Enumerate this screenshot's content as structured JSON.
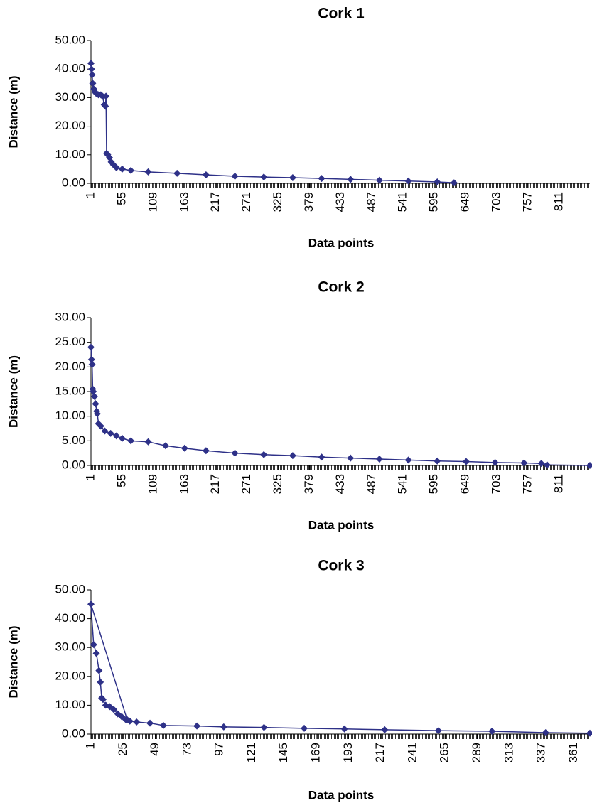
{
  "chart_data": [
    {
      "type": "line",
      "title": "Cork 1",
      "x_label": "Data points",
      "y_label": "Distance (m)",
      "color": "#2e3188",
      "xlim": [
        1,
        864
      ],
      "xticks": [
        1,
        55,
        109,
        163,
        217,
        271,
        325,
        379,
        433,
        487,
        541,
        595,
        649,
        703,
        757,
        811
      ],
      "ylim": [
        0,
        50
      ],
      "yticks": [
        {
          "value": 0,
          "label": "0.00"
        },
        {
          "value": 10,
          "label": "10.00"
        },
        {
          "value": 20,
          "label": "20.00"
        },
        {
          "value": 30,
          "label": "30.00"
        },
        {
          "value": 40,
          "label": "40.00"
        },
        {
          "value": 50,
          "label": "50.00"
        }
      ],
      "x": [
        1,
        2,
        3,
        4,
        6,
        8,
        10,
        14,
        18,
        21,
        24,
        26,
        27,
        28,
        30,
        33,
        36,
        40,
        45,
        55,
        70,
        100,
        150,
        200,
        250,
        300,
        350,
        400,
        450,
        500,
        550,
        600,
        629
      ],
      "values": [
        42,
        40,
        38,
        35,
        33,
        32,
        31.5,
        31,
        31,
        30.5,
        27.5,
        27,
        30.5,
        10.5,
        10,
        9,
        7.5,
        6.5,
        5.5,
        5,
        4.5,
        4,
        3.5,
        3,
        2.5,
        2.2,
        2,
        1.7,
        1.4,
        1.1,
        0.8,
        0.5,
        0.2
      ]
    },
    {
      "type": "line",
      "title": "Cork 2",
      "x_label": "Data points",
      "y_label": "Distance (m)",
      "color": "#2e3188",
      "xlim": [
        1,
        864
      ],
      "xticks": [
        1,
        55,
        109,
        163,
        217,
        271,
        325,
        379,
        433,
        487,
        541,
        595,
        649,
        703,
        757,
        811
      ],
      "ylim": [
        0,
        30
      ],
      "yticks": [
        {
          "value": 0,
          "label": "0.00"
        },
        {
          "value": 5,
          "label": "5.00"
        },
        {
          "value": 10,
          "label": "10.00"
        },
        {
          "value": 15,
          "label": "15.00"
        },
        {
          "value": 20,
          "label": "20.00"
        },
        {
          "value": 25,
          "label": "25.00"
        },
        {
          "value": 30,
          "label": "30.00"
        }
      ],
      "x": [
        1,
        2,
        3,
        4,
        5,
        7,
        9,
        11,
        12,
        14,
        18,
        25,
        35,
        45,
        55,
        70,
        100,
        130,
        163,
        200,
        250,
        300,
        350,
        400,
        450,
        500,
        550,
        600,
        650,
        700,
        750,
        780,
        790,
        864
      ],
      "values": [
        24,
        21.5,
        20.5,
        15.5,
        15,
        14,
        12.5,
        11,
        10.5,
        8.5,
        8,
        7,
        6.5,
        6,
        5.5,
        5,
        4.8,
        4,
        3.5,
        3,
        2.5,
        2.2,
        2,
        1.7,
        1.5,
        1.3,
        1.1,
        0.9,
        0.8,
        0.6,
        0.5,
        0.4,
        0.1,
        0
      ]
    },
    {
      "type": "line",
      "title": "Cork 3",
      "x_label": "Data points",
      "y_label": "Distance (m)",
      "color": "#2e3188",
      "xlim": [
        1,
        373
      ],
      "xticks": [
        1,
        25,
        49,
        73,
        97,
        121,
        145,
        169,
        193,
        217,
        241,
        265,
        289,
        313,
        337,
        361
      ],
      "ylim": [
        0,
        50
      ],
      "yticks": [
        {
          "value": 0,
          "label": "0.00"
        },
        {
          "value": 10,
          "label": "10.00"
        },
        {
          "value": 20,
          "label": "20.00"
        },
        {
          "value": 30,
          "label": "30.00"
        },
        {
          "value": 40,
          "label": "40.00"
        },
        {
          "value": 50,
          "label": "50.00"
        }
      ],
      "x": [
        28,
        1,
        3,
        5,
        7,
        8,
        9,
        10,
        12,
        15,
        18,
        21,
        24,
        27,
        30,
        35,
        45,
        55,
        80,
        100,
        130,
        160,
        190,
        220,
        260,
        300,
        340,
        373
      ],
      "values": [
        5,
        45,
        31,
        28,
        22,
        18,
        12.5,
        12,
        10,
        9.5,
        8.5,
        7,
        6,
        5,
        4.5,
        4.2,
        3.8,
        3,
        2.8,
        2.5,
        2.3,
        2,
        1.8,
        1.5,
        1.2,
        1,
        0.5,
        0.3
      ]
    }
  ]
}
